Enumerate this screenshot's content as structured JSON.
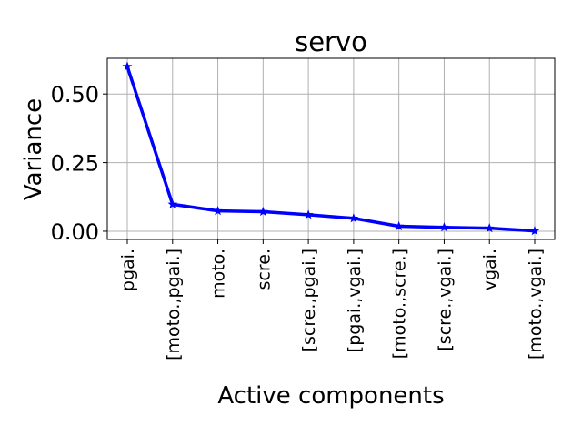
{
  "chart_data": {
    "type": "line",
    "title": "servo",
    "xlabel": "Active components",
    "ylabel": "Variance",
    "categories": [
      "pgai.",
      "[moto.,pgai.]",
      "moto.",
      "scre.",
      "[scre.,pgai.]",
      "[pgai.,vgai.]",
      "[moto.,scre.]",
      "[scre.,vgai.]",
      "vgai.",
      "[moto.,vgai.]"
    ],
    "yticks": [
      "0.00",
      "0.25",
      "0.50"
    ],
    "ylim": [
      -0.03,
      0.63
    ],
    "grid": true,
    "series": [
      {
        "values": [
          0.6,
          0.098,
          0.074,
          0.071,
          0.06,
          0.047,
          0.018,
          0.014,
          0.011,
          0.001
        ],
        "color": "#0000ff",
        "marker": "star"
      }
    ]
  }
}
